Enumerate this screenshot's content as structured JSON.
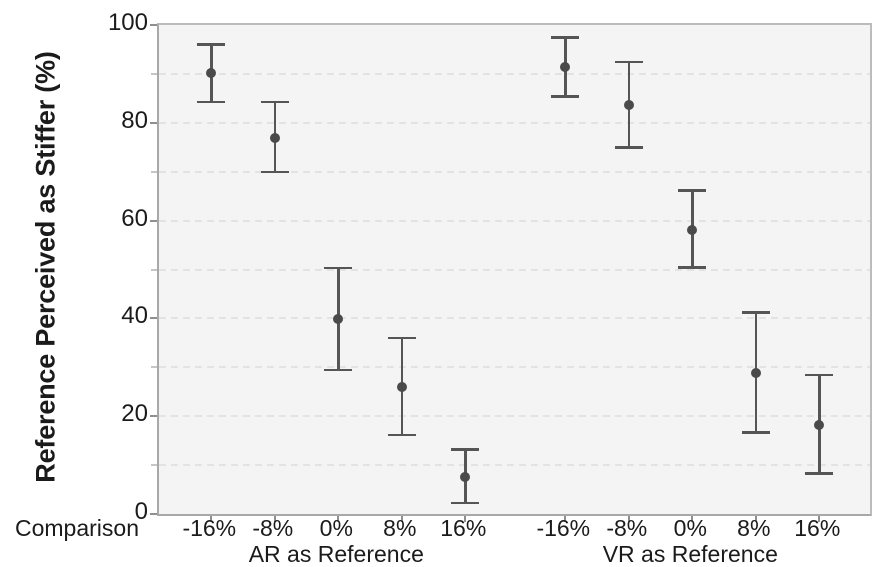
{
  "figure": {
    "y_axis_title": "Reference Perceived as Stiffer (%)",
    "x_axis_prefix": "Comparison"
  },
  "chart_data": {
    "type": "scatter",
    "subtype": "point-estimate-with-error-bars",
    "title": "",
    "xlabel": "Comparison",
    "ylabel": "Reference Perceived as Stiffer (%)",
    "ylim": [
      0,
      100
    ],
    "y_major_ticks": [
      0,
      20,
      40,
      60,
      80,
      100
    ],
    "y_major_tick_labels": [
      "0",
      "20",
      "40",
      "60",
      "80",
      "100"
    ],
    "y_minor_ticks": [
      10,
      30,
      50,
      70,
      90
    ],
    "gridlines": {
      "orientation": "horizontal",
      "style": "dashed",
      "at": [
        10,
        20,
        30,
        40,
        50,
        60,
        70,
        80,
        90
      ]
    },
    "legend": null,
    "groups": [
      {
        "label": "AR as Reference",
        "categories": [
          "-16%",
          "-8%",
          "0%",
          "8%",
          "16%"
        ],
        "points": [
          {
            "category": "-16%",
            "mean": 90.2,
            "ci_low": 84.3,
            "ci_high": 96.0
          },
          {
            "category": "-8%",
            "mean": 76.9,
            "ci_low": 69.9,
            "ci_high": 84.3
          },
          {
            "category": "0%",
            "mean": 39.8,
            "ci_low": 29.4,
            "ci_high": 50.3
          },
          {
            "category": "8%",
            "mean": 26.0,
            "ci_low": 16.2,
            "ci_high": 36.0
          },
          {
            "category": "16%",
            "mean": 7.6,
            "ci_low": 2.2,
            "ci_high": 13.2
          }
        ]
      },
      {
        "label": "VR as Reference",
        "categories": [
          "-16%",
          "-8%",
          "0%",
          "8%",
          "16%"
        ],
        "points": [
          {
            "category": "-16%",
            "mean": 91.5,
            "ci_low": 85.4,
            "ci_high": 97.4
          },
          {
            "category": "-8%",
            "mean": 83.7,
            "ci_low": 74.9,
            "ci_high": 92.4
          },
          {
            "category": "0%",
            "mean": 58.1,
            "ci_low": 50.4,
            "ci_high": 66.2
          },
          {
            "category": "8%",
            "mean": 28.9,
            "ci_low": 16.7,
            "ci_high": 41.2
          },
          {
            "category": "16%",
            "mean": 18.2,
            "ci_low": 8.3,
            "ci_high": 28.4
          }
        ]
      }
    ],
    "colors": {
      "marker": "#4a4a4a",
      "error_bar": "#555555",
      "plot_background": "#f4f4f4",
      "gridline": "#e3e3e3",
      "axis": "#a8a8a8",
      "text": "#1b1b1b"
    }
  }
}
